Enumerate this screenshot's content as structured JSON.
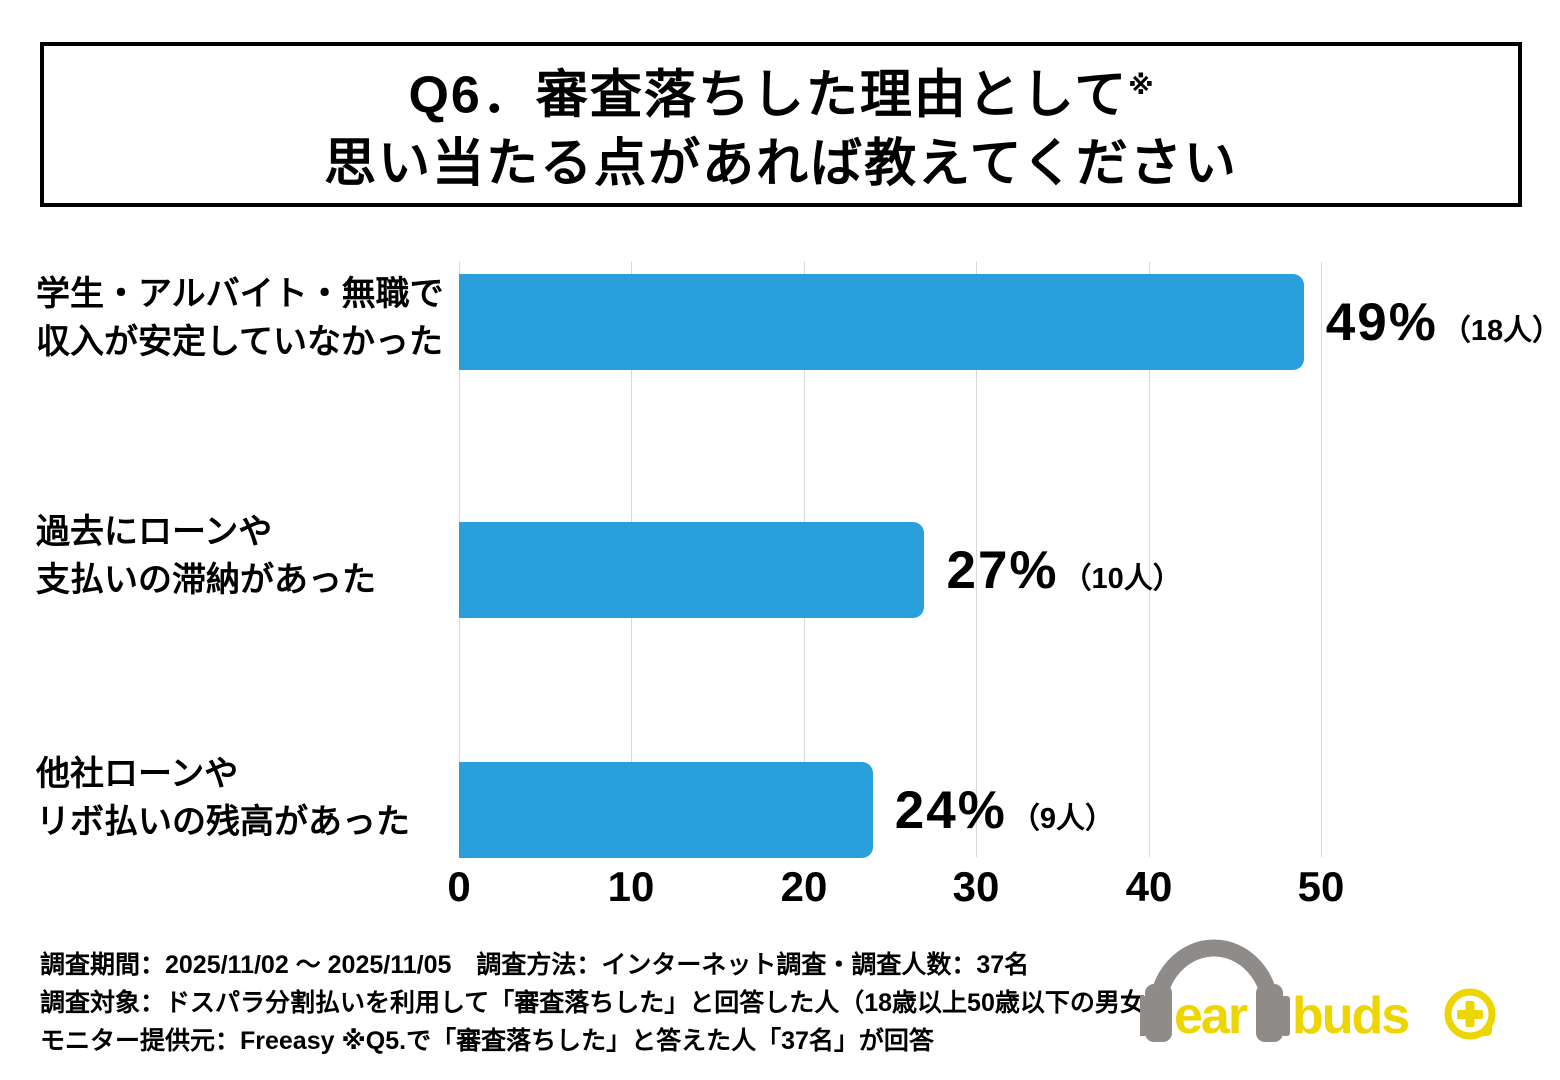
{
  "title": {
    "line1": "Q6．審査落ちした理由として",
    "line1_sup": "※",
    "line2": "思い当たる点があれば教えてください"
  },
  "chart_data": {
    "type": "bar",
    "orientation": "horizontal",
    "title": "Q6．審査落ちした理由として※思い当たる点があれば教えてください",
    "categories": [
      {
        "line1": "学生・アルバイト・無職で",
        "line2": "収入が安定していなかった"
      },
      {
        "line1": "過去にローンや",
        "line2": "支払いの滞納があった"
      },
      {
        "line1": "他社ローンや",
        "line2": "リボ払いの残高があった"
      }
    ],
    "values": [
      49,
      27,
      24
    ],
    "counts": [
      18,
      10,
      9
    ],
    "value_labels": [
      {
        "pct": "49%",
        "count": "（18人）"
      },
      {
        "pct": "27%",
        "count": "（10人）"
      },
      {
        "pct": "24%",
        "count": "（9人）"
      }
    ],
    "ticks": [
      "0",
      "10",
      "20",
      "30",
      "40",
      "50"
    ],
    "xlabel": "",
    "ylabel": "",
    "xlim": [
      0,
      50
    ],
    "grid": true,
    "legend": "none",
    "bar_color": "#29A0DC"
  },
  "footer": {
    "line1": "調査期間：2025/11/02 ～ 2025/11/05　調査方法：インターネット調査・調査人数：37名",
    "line2": "調査対象：ドスパラ分割払いを利用して「審査落ちした」と回答した人（18歳以上50歳以下の男女）",
    "line3": "モニター提供元：Freeasy ※Q5.で「審査落ちした」と答えた人「37名」が回答"
  },
  "logo": {
    "text1": "ear",
    "text2": "buds"
  },
  "colors": {
    "bar": "#29A0DC",
    "gridline": "#D9D9D9",
    "text": "#000000",
    "logo_yellow": "#EDD500",
    "logo_gray": "#8E8B88"
  }
}
